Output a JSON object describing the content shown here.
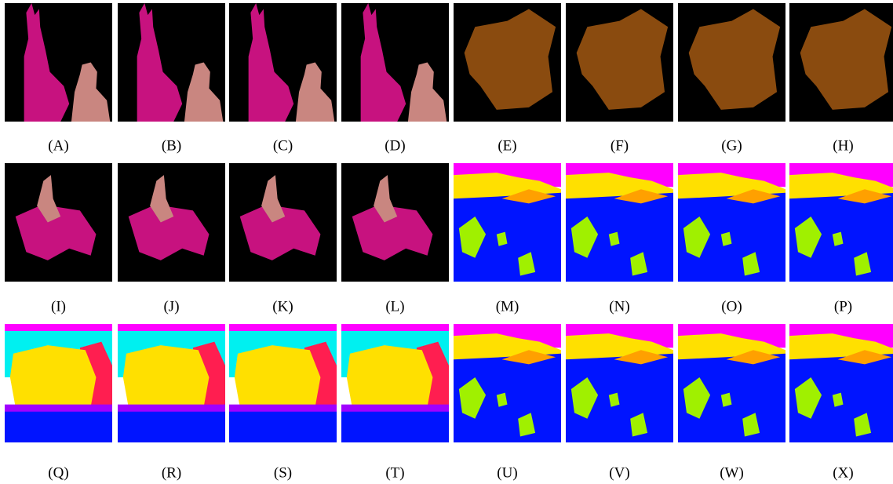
{
  "labels": [
    "(A)",
    "(B)",
    "(C)",
    "(D)",
    "(E)",
    "(F)",
    "(G)",
    "(H)",
    "(I)",
    "(J)",
    "(K)",
    "(L)",
    "(M)",
    "(N)",
    "(O)",
    "(P)",
    "(Q)",
    "(R)",
    "(S)",
    "(T)",
    "(U)",
    "(V)",
    "(W)",
    "(X)"
  ]
}
